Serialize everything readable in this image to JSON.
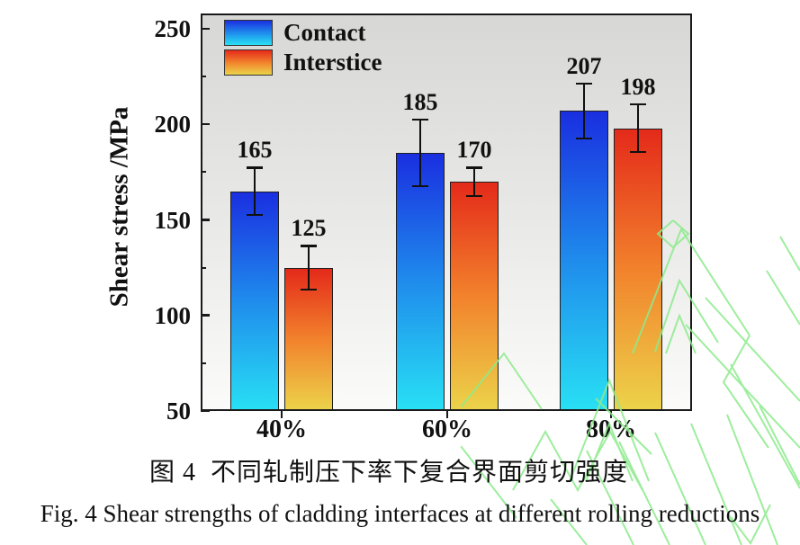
{
  "captions": {
    "chinese": "图 4  不同轧制压下率下复合界面剪切强度",
    "english": "Fig. 4 Shear strengths of cladding interfaces at different rolling reductions"
  },
  "colors": {
    "plot_bg_top": "#d7d7d5",
    "plot_bg_mid": "#e8e8e6",
    "plot_bg_bottom": "#fbfbfa",
    "axis": "#1a1a1a",
    "text": "#111111",
    "watermark_green": "#8deb8d"
  },
  "chart_data": {
    "type": "bar",
    "title": "",
    "xlabel": "",
    "ylabel": "Shear stress /MPa",
    "categories": [
      "40%",
      "60%",
      "80%"
    ],
    "series": [
      {
        "name": "Contact",
        "values": [
          165,
          185,
          207
        ],
        "errors": [
          13,
          18,
          15
        ],
        "gradient": [
          "#1a2fe0",
          "#1f8cec",
          "#28e0f4"
        ]
      },
      {
        "name": "Interstice",
        "values": [
          125,
          170,
          198
        ],
        "errors": [
          12,
          8,
          13
        ],
        "gradient": [
          "#e42a1a",
          "#f2822c",
          "#ecd34a"
        ]
      }
    ],
    "ylim": [
      50,
      258
    ],
    "yticks": [
      50,
      100,
      150,
      200,
      250
    ],
    "yminor": [
      75,
      125,
      175,
      225
    ],
    "bar_value_labels": true,
    "error_bars": true,
    "grid": false,
    "legend_position": "top-left",
    "plot_background": "gray-gradient"
  }
}
